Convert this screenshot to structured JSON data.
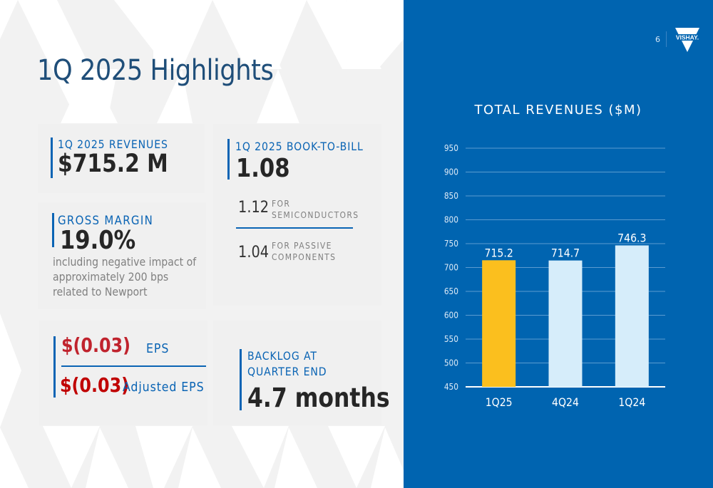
{
  "slide": {
    "title": "1Q 2025 Highlights",
    "page_number": "6",
    "logo_text": "VISHAY."
  },
  "colors": {
    "accent_blue": "#0a64b4",
    "panel_blue": "#0064b0",
    "title_blue": "#1f4e79",
    "eps_red": "#c0141e",
    "highlight_bar": "#fbbf1e",
    "other_bar": "#d6edfa"
  },
  "cards": {
    "revenues": {
      "label": "1Q 2025 REVENUES",
      "value": "$715.2 M"
    },
    "gross_margin": {
      "label": "GROSS MARGIN",
      "value": "19.0%",
      "note_lines": [
        "including negative impact of",
        "approximately 200 bps",
        "related to Newport"
      ]
    },
    "book_to_bill": {
      "label": "1Q 2025 BOOK-TO-BILL",
      "value": "1.08",
      "items": [
        {
          "value": "1.12",
          "label_lines": [
            "FOR",
            "SEMICONDUCTORS"
          ]
        },
        {
          "value": "1.04",
          "label_lines": [
            "FOR PASSIVE",
            "COMPONENTS"
          ]
        }
      ]
    },
    "eps": {
      "rows": [
        {
          "value": "$(0.03)",
          "label": "EPS"
        },
        {
          "value": "$(0.03)",
          "label": "Adjusted EPS"
        }
      ]
    },
    "backlog": {
      "label_lines": [
        "BACKLOG AT",
        "QUARTER END"
      ],
      "value": "4.7 months"
    }
  },
  "chart_data": {
    "type": "bar",
    "title": "TOTAL REVENUES ($M)",
    "categories": [
      "1Q25",
      "4Q24",
      "1Q24"
    ],
    "values": [
      715.2,
      714.7,
      746.3
    ],
    "data_labels": [
      "715.2",
      "714.7",
      "746.3"
    ],
    "highlight_index": 0,
    "xlabel": "",
    "ylabel": "",
    "ylim": [
      450,
      950
    ],
    "yticks": [
      450,
      500,
      550,
      600,
      650,
      700,
      750,
      800,
      850,
      900,
      950
    ],
    "grid": true,
    "legend": "none"
  }
}
